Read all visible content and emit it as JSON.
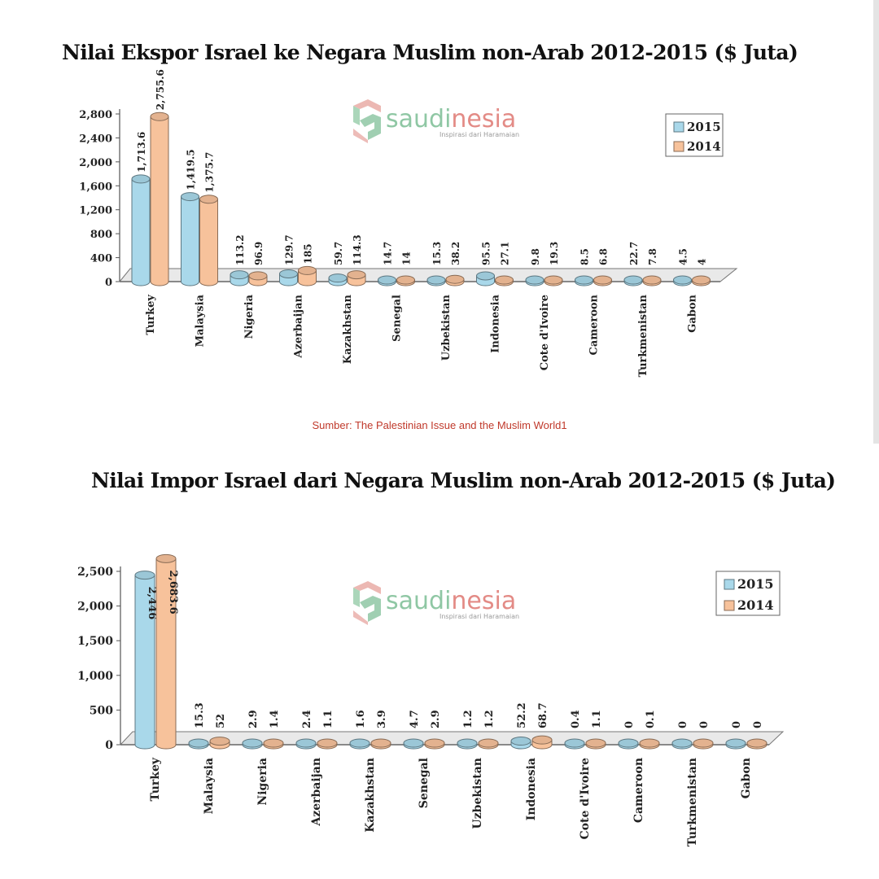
{
  "titles": {
    "export": "Nilai Ekspor Israel ke Negara Muslim non-Arab 2012-2015 ($ Juta)",
    "import": "Nilai Impor Israel dari Negara Muslim non-Arab 2012-2015 ($ Juta)"
  },
  "source": "Sumber: The Palestinian Issue and the Muslim World1",
  "watermark": {
    "brand_part1": "saudi",
    "brand_part2": "nesia",
    "tagline": "Inspirasi dari Haramaian"
  },
  "colors": {
    "series_2015": "#a9d8ea",
    "series_2014": "#f7c29b",
    "title": "#111111",
    "source": "#c0392b"
  },
  "chart_data": [
    {
      "type": "bar",
      "title": "Nilai Ekspor Israel ke Negara Muslim non-Arab 2012-2015 ($ Juta)",
      "categories": [
        "Turkey",
        "Malaysia",
        "Nigeria",
        "Azerbaijan",
        "Kazakhstan",
        "Senegal",
        "Uzbekistan",
        "Indonesia",
        "Cote d'Ivoire",
        "Cameroon",
        "Turkmenistan",
        "Gabon"
      ],
      "series": [
        {
          "name": "2015",
          "values": [
            1713.6,
            1419.5,
            113.2,
            129.7,
            59.7,
            14.7,
            15.3,
            95.5,
            9.8,
            8.5,
            22.7,
            4.5
          ],
          "labels": [
            "1,713.6",
            "1,419.5",
            "113.2",
            "129.7",
            "59.7",
            "14.7",
            "15.3",
            "95.5",
            "9.8",
            "8.5",
            "22.7",
            "4.5"
          ]
        },
        {
          "name": "2014",
          "values": [
            2755.6,
            1375.7,
            96.9,
            185,
            114.3,
            14,
            38.2,
            27.1,
            19.3,
            6.8,
            7.8,
            4
          ],
          "labels": [
            "2,755.6",
            "1,375.7",
            "96.9",
            "185",
            "114.3",
            "14",
            "38.2",
            "27.1",
            "19.3",
            "6.8",
            "7.8",
            "4"
          ]
        }
      ],
      "yticks": [
        "0",
        "400",
        "800",
        "1,200",
        "1,600",
        "2,000",
        "2,400",
        "2,800"
      ],
      "ylim": [
        0,
        2800
      ],
      "legend": "top-right",
      "grid": false
    },
    {
      "type": "bar",
      "title": "Nilai Impor Israel dari Negara Muslim non-Arab 2012-2015 ($ Juta)",
      "categories": [
        "Turkey",
        "Malaysia",
        "Nigeria",
        "Azerbaijan",
        "Kazakhstan",
        "Senegal",
        "Uzbekistan",
        "Indonesia",
        "Cote d'Ivoire",
        "Cameroon",
        "Turkmenistan",
        "Gabon"
      ],
      "series": [
        {
          "name": "2015",
          "values": [
            2446,
            15.3,
            2.9,
            2.4,
            1.6,
            4.7,
            1.2,
            52.2,
            0.4,
            0,
            0,
            0
          ],
          "labels": [
            "2,446",
            "15.3",
            "2.9",
            "2.4",
            "1.6",
            "4.7",
            "1.2",
            "52.2",
            "0.4",
            "0",
            "0",
            "0"
          ]
        },
        {
          "name": "2014",
          "values": [
            2683.6,
            52,
            1.4,
            1.1,
            3.9,
            2.9,
            1.2,
            68.7,
            1.1,
            0.1,
            0,
            0
          ],
          "labels": [
            "2,683.6",
            "52",
            "1.4",
            "1.1",
            "3.9",
            "2.9",
            "1.2",
            "68.7",
            "1.1",
            "0.1",
            "0",
            "0"
          ]
        }
      ],
      "yticks": [
        "0",
        "500",
        "1,000",
        "1,500",
        "2,000",
        "2,500"
      ],
      "ylim": [
        0,
        2500
      ],
      "legend": "top-right",
      "grid": false
    }
  ]
}
